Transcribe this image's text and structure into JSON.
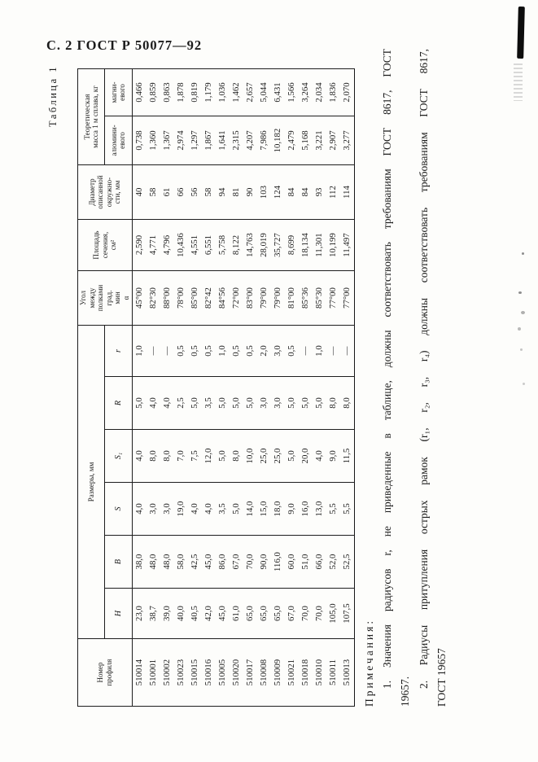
{
  "page": {
    "header": "С. 2 ГОСТ Р 50077—92",
    "table_caption": "Таблица 1"
  },
  "table": {
    "headers": {
      "profile": "Номер\nпрофиля",
      "dimensions_group": "Размеры, мм",
      "dim_cols": [
        "H",
        "B",
        "S",
        "S₁",
        "R",
        "r"
      ],
      "angle": "Угол\nмежду\nполками\nград.\nмин\nα",
      "area": "Площадь\nсечения,\nсм²",
      "diameter": "Диаметр\nописанной\nокружно-\nсти, мм",
      "mass_group": "Теоретическая\nмасса 1 м сплава, кг",
      "mass_cols": [
        "алюмини-\nевого",
        "магни-\nевого"
      ]
    },
    "rows": [
      [
        "510014",
        "23,0",
        "38,0",
        "4,0",
        "4,0",
        "5,0",
        "1,0",
        "45°00",
        "2,590",
        "40",
        "0,738",
        "0,466"
      ],
      [
        "510001",
        "38,7",
        "48,0",
        "3,0",
        "8,0",
        "4,0",
        "—",
        "82°30",
        "4,771",
        "58",
        "1,360",
        "0,859"
      ],
      [
        "510002",
        "39,0",
        "48,0",
        "3,0",
        "8,0",
        "4,0",
        "—",
        "88°00",
        "4,796",
        "61",
        "1,367",
        "0,863"
      ],
      [
        "510023",
        "40,0",
        "58,0",
        "19,0",
        "7,0",
        "2,5",
        "0,5",
        "78°00",
        "10,436",
        "66",
        "2,974",
        "1,878"
      ],
      [
        "510015",
        "40,5",
        "42,5",
        "4,0",
        "7,5",
        "5,0",
        "0,5",
        "85°00",
        "4,551",
        "56",
        "1,297",
        "0,819"
      ],
      [
        "510016",
        "42,0",
        "45,0",
        "4,0",
        "12,0",
        "3,5",
        "0,5",
        "82°42",
        "6,551",
        "58",
        "1,867",
        "1,179"
      ],
      [
        "510005",
        "45,0",
        "86,0",
        "3,5",
        "5,0",
        "5,0",
        "1,0",
        "84°56",
        "5,758",
        "94",
        "1,641",
        "1,036"
      ],
      [
        "510020",
        "61,0",
        "67,0",
        "5,0",
        "8,0",
        "5,0",
        "0,5",
        "72°00",
        "8,122",
        "81",
        "2,315",
        "1,462"
      ],
      [
        "510017",
        "65,0",
        "70,0",
        "14,0",
        "10,0",
        "5,0",
        "0,5",
        "83°00",
        "14,763",
        "90",
        "4,207",
        "2,657"
      ],
      [
        "510008",
        "65,0",
        "90,0",
        "15,0",
        "25,0",
        "3,0",
        "2,0",
        "79°00",
        "28,019",
        "103",
        "7,986",
        "5,044"
      ],
      [
        "510009",
        "65,0",
        "116,0",
        "18,0",
        "25,0",
        "3,0",
        "3,0",
        "79°00",
        "35,727",
        "124",
        "10,182",
        "6,431"
      ],
      [
        "510021",
        "67,0",
        "60,0",
        "9,0",
        "5,0",
        "5,0",
        "0,5",
        "81°00",
        "8,699",
        "84",
        "2,479",
        "1,566"
      ],
      [
        "510018",
        "70,0",
        "51,0",
        "16,0",
        "20,0",
        "5,0",
        "—",
        "85°36",
        "18,134",
        "84",
        "5,168",
        "3,264"
      ],
      [
        "510010",
        "70,0",
        "66,0",
        "13,0",
        "4,0",
        "5,0",
        "1,0",
        "85°30",
        "11,301",
        "93",
        "3,221",
        "2,034"
      ],
      [
        "510011",
        "105,0",
        "52,0",
        "5,5",
        "9,0",
        "8,0",
        "—",
        "77°00",
        "10,199",
        "112",
        "2,907",
        "1,836"
      ],
      [
        "510013",
        "107,5",
        "52,5",
        "5,5",
        "11,5",
        "8,0",
        "—",
        "77°00",
        "11,497",
        "114",
        "3,277",
        "2,070"
      ]
    ]
  },
  "notes": {
    "title": "Примечания:",
    "lines": [
      "1. Значения радиусов r, не приведенные в таблице, должны соответствовать требованиям ГОСТ 8617, ГОСТ",
      "19657.",
      "2. Радиусы притупления острых рамок (r₁, r₂, r₃, r₄) должны соответствовать требованиям ГОСТ 8617,",
      "ГОСТ 19657"
    ]
  }
}
